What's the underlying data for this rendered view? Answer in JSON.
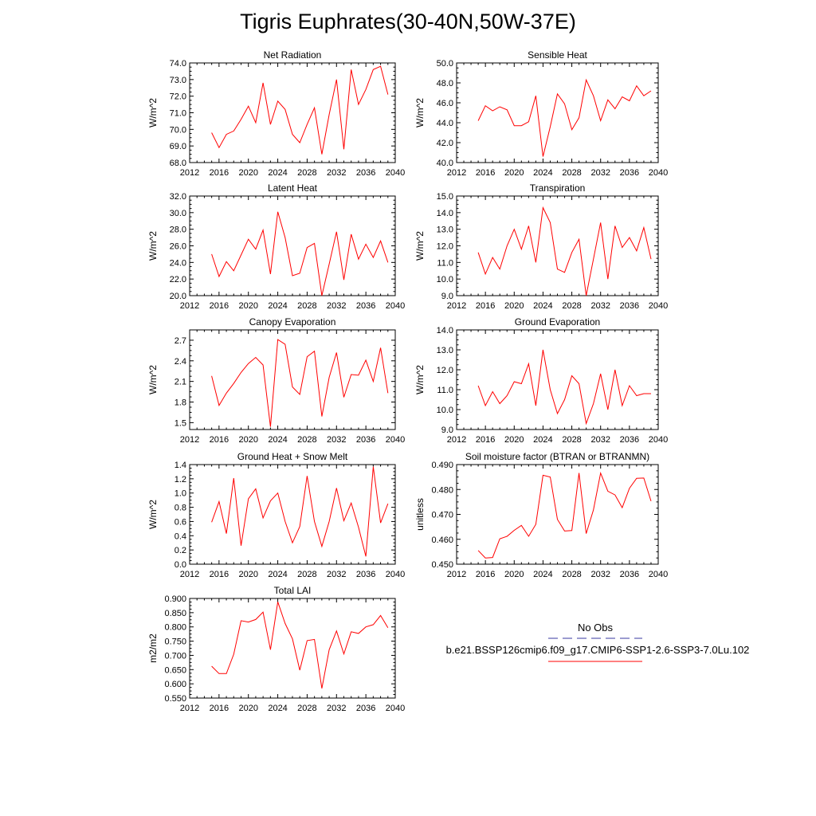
{
  "title": "Tigris Euphrates(30-40N,50W-37E)",
  "legend": {
    "items": [
      {
        "label": "No Obs",
        "color": "#3a3aa0",
        "style": "dashed"
      },
      {
        "label": "b.e21.BSSP126cmip6.f09_g17.CMIP6-SSP1-2.6-SSP3-7.0Lu.102",
        "color": "#ff0000",
        "style": "solid"
      }
    ]
  },
  "chart_data": [
    {
      "type": "line",
      "title": "Net Radiation",
      "ylabel": "W/m^2",
      "xlim": [
        2012,
        2040
      ],
      "xticks": [
        2012,
        2016,
        2020,
        2024,
        2028,
        2032,
        2036,
        2040
      ],
      "ylim": [
        68.0,
        74.0
      ],
      "yticks": [
        "68.0",
        "69.0",
        "70.0",
        "71.0",
        "72.0",
        "73.0",
        "74.0"
      ],
      "x": [
        2015,
        2016,
        2017,
        2018,
        2019,
        2020,
        2021,
        2022,
        2023,
        2024,
        2025,
        2026,
        2027,
        2028,
        2029,
        2030,
        2031,
        2032,
        2033,
        2034,
        2035,
        2036,
        2037,
        2038,
        2039
      ],
      "series": [
        {
          "color": "#ff0000",
          "values": [
            69.8,
            68.9,
            69.7,
            69.9,
            70.6,
            71.4,
            70.4,
            72.8,
            70.3,
            71.7,
            71.2,
            69.7,
            69.2,
            70.3,
            71.3,
            68.5,
            70.9,
            73.0,
            68.8,
            73.6,
            71.5,
            72.4,
            73.6,
            73.8,
            72.1
          ]
        }
      ]
    },
    {
      "type": "line",
      "title": "Sensible Heat",
      "ylabel": "W/m^2",
      "xlim": [
        2012,
        2040
      ],
      "xticks": [
        2012,
        2016,
        2020,
        2024,
        2028,
        2032,
        2036,
        2040
      ],
      "ylim": [
        40.0,
        50.0
      ],
      "yticks": [
        "40.0",
        "42.0",
        "44.0",
        "46.0",
        "48.0",
        "50.0"
      ],
      "x": [
        2015,
        2016,
        2017,
        2018,
        2019,
        2020,
        2021,
        2022,
        2023,
        2024,
        2025,
        2026,
        2027,
        2028,
        2029,
        2030,
        2031,
        2032,
        2033,
        2034,
        2035,
        2036,
        2037,
        2038,
        2039
      ],
      "series": [
        {
          "color": "#ff0000",
          "values": [
            44.2,
            45.7,
            45.2,
            45.6,
            45.3,
            43.7,
            43.7,
            44.1,
            46.7,
            40.6,
            43.6,
            46.9,
            45.9,
            43.3,
            44.5,
            48.3,
            46.7,
            44.2,
            46.3,
            45.4,
            46.6,
            46.2,
            47.7,
            46.7,
            47.2
          ]
        }
      ]
    },
    {
      "type": "line",
      "title": "Latent Heat",
      "ylabel": "W/m^2",
      "xlim": [
        2012,
        2040
      ],
      "xticks": [
        2012,
        2016,
        2020,
        2024,
        2028,
        2032,
        2036,
        2040
      ],
      "ylim": [
        20.0,
        32.0
      ],
      "yticks": [
        "20.0",
        "22.0",
        "24.0",
        "26.0",
        "28.0",
        "30.0",
        "32.0"
      ],
      "x": [
        2015,
        2016,
        2017,
        2018,
        2019,
        2020,
        2021,
        2022,
        2023,
        2024,
        2025,
        2026,
        2027,
        2028,
        2029,
        2030,
        2031,
        2032,
        2033,
        2034,
        2035,
        2036,
        2037,
        2038,
        2039
      ],
      "series": [
        {
          "color": "#ff0000",
          "values": [
            25.0,
            22.3,
            24.1,
            23.0,
            24.9,
            26.8,
            25.6,
            27.9,
            22.6,
            30.1,
            27.0,
            22.4,
            22.7,
            25.8,
            26.3,
            20.0,
            23.8,
            27.7,
            21.9,
            27.4,
            24.4,
            26.2,
            24.6,
            26.6,
            24.0
          ]
        }
      ]
    },
    {
      "type": "line",
      "title": "Transpiration",
      "ylabel": "W/m^2",
      "xlim": [
        2012,
        2040
      ],
      "xticks": [
        2012,
        2016,
        2020,
        2024,
        2028,
        2032,
        2036,
        2040
      ],
      "ylim": [
        9.0,
        15.0
      ],
      "yticks": [
        "9.0",
        "10.0",
        "11.0",
        "12.0",
        "13.0",
        "14.0",
        "15.0"
      ],
      "x": [
        2015,
        2016,
        2017,
        2018,
        2019,
        2020,
        2021,
        2022,
        2023,
        2024,
        2025,
        2026,
        2027,
        2028,
        2029,
        2030,
        2031,
        2032,
        2033,
        2034,
        2035,
        2036,
        2037,
        2038,
        2039
      ],
      "series": [
        {
          "color": "#ff0000",
          "values": [
            11.6,
            10.3,
            11.3,
            10.6,
            12.0,
            13.0,
            11.8,
            13.2,
            11.0,
            14.3,
            13.4,
            10.6,
            10.4,
            11.6,
            12.4,
            9.0,
            11.2,
            13.4,
            10.0,
            13.2,
            11.9,
            12.5,
            11.7,
            13.1,
            11.2
          ]
        }
      ]
    },
    {
      "type": "line",
      "title": "Canopy Evaporation",
      "ylabel": "W/m^2",
      "xlim": [
        2012,
        2040
      ],
      "xticks": [
        2012,
        2016,
        2020,
        2024,
        2028,
        2032,
        2036,
        2040
      ],
      "ylim": [
        1.4,
        2.85
      ],
      "yticks": [
        "1.5",
        "1.8",
        "2.1",
        "2.4",
        "2.7"
      ],
      "x": [
        2015,
        2016,
        2017,
        2018,
        2019,
        2020,
        2021,
        2022,
        2023,
        2024,
        2025,
        2026,
        2027,
        2028,
        2029,
        2030,
        2031,
        2032,
        2033,
        2034,
        2035,
        2036,
        2037,
        2038,
        2039
      ],
      "series": [
        {
          "color": "#ff0000",
          "values": [
            2.18,
            1.75,
            1.93,
            2.07,
            2.23,
            2.36,
            2.45,
            2.34,
            1.44,
            2.71,
            2.64,
            2.02,
            1.91,
            2.46,
            2.54,
            1.59,
            2.16,
            2.52,
            1.87,
            2.2,
            2.19,
            2.41,
            2.1,
            2.59,
            1.93
          ]
        }
      ]
    },
    {
      "type": "line",
      "title": "Ground Evaporation",
      "ylabel": "W/m^2",
      "xlim": [
        2012,
        2040
      ],
      "xticks": [
        2012,
        2016,
        2020,
        2024,
        2028,
        2032,
        2036,
        2040
      ],
      "ylim": [
        9.0,
        14.0
      ],
      "yticks": [
        "9.0",
        "10.0",
        "11.0",
        "12.0",
        "13.0",
        "14.0"
      ],
      "x": [
        2015,
        2016,
        2017,
        2018,
        2019,
        2020,
        2021,
        2022,
        2023,
        2024,
        2025,
        2026,
        2027,
        2028,
        2029,
        2030,
        2031,
        2032,
        2033,
        2034,
        2035,
        2036,
        2037,
        2038,
        2039
      ],
      "series": [
        {
          "color": "#ff0000",
          "values": [
            11.2,
            10.2,
            10.9,
            10.3,
            10.7,
            11.4,
            11.3,
            12.3,
            10.2,
            13.0,
            11.0,
            9.8,
            10.5,
            11.7,
            11.3,
            9.3,
            10.3,
            11.8,
            10.0,
            12.0,
            10.2,
            11.2,
            10.7,
            10.8,
            10.8
          ]
        }
      ]
    },
    {
      "type": "line",
      "title": "Ground Heat + Snow Melt",
      "ylabel": "W/m^2",
      "xlim": [
        2012,
        2040
      ],
      "xticks": [
        2012,
        2016,
        2020,
        2024,
        2028,
        2032,
        2036,
        2040
      ],
      "ylim": [
        0.0,
        1.4
      ],
      "yticks": [
        "0.0",
        "0.2",
        "0.4",
        "0.6",
        "0.8",
        "1.0",
        "1.2",
        "1.4"
      ],
      "x": [
        2015,
        2016,
        2017,
        2018,
        2019,
        2020,
        2021,
        2022,
        2023,
        2024,
        2025,
        2026,
        2027,
        2028,
        2029,
        2030,
        2031,
        2032,
        2033,
        2034,
        2035,
        2036,
        2037,
        2038,
        2039
      ],
      "series": [
        {
          "color": "#ff0000",
          "values": [
            0.59,
            0.88,
            0.43,
            1.21,
            0.26,
            0.92,
            1.06,
            0.65,
            0.89,
            1.0,
            0.6,
            0.3,
            0.53,
            1.24,
            0.6,
            0.25,
            0.6,
            1.07,
            0.61,
            0.86,
            0.52,
            0.11,
            1.37,
            0.58,
            0.85
          ]
        }
      ]
    },
    {
      "type": "line",
      "title": "Soil moisture factor (BTRAN or BTRANMN)",
      "ylabel": "unitless",
      "xlim": [
        2012,
        2040
      ],
      "xticks": [
        2012,
        2016,
        2020,
        2024,
        2028,
        2032,
        2036,
        2040
      ],
      "ylim": [
        0.45,
        0.49
      ],
      "yticks": [
        "0.450",
        "0.460",
        "0.470",
        "0.480",
        "0.490"
      ],
      "x": [
        2015,
        2016,
        2017,
        2018,
        2019,
        2020,
        2021,
        2022,
        2023,
        2024,
        2025,
        2026,
        2027,
        2028,
        2029,
        2030,
        2031,
        2032,
        2033,
        2034,
        2035,
        2036,
        2037,
        2038,
        2039
      ],
      "series": [
        {
          "color": "#ff0000",
          "values": [
            0.4555,
            0.4525,
            0.4527,
            0.4602,
            0.4612,
            0.4636,
            0.4656,
            0.4612,
            0.466,
            0.4857,
            0.485,
            0.468,
            0.4633,
            0.4635,
            0.4866,
            0.4623,
            0.4718,
            0.4866,
            0.4793,
            0.4778,
            0.4727,
            0.4805,
            0.4845,
            0.4846,
            0.4753
          ]
        }
      ]
    },
    {
      "type": "line",
      "title": "Total LAI",
      "ylabel": "m2/m2",
      "xlim": [
        2012,
        2040
      ],
      "xticks": [
        2012,
        2016,
        2020,
        2024,
        2028,
        2032,
        2036,
        2040
      ],
      "ylim": [
        0.55,
        0.9
      ],
      "yticks": [
        "0.550",
        "0.600",
        "0.650",
        "0.700",
        "0.750",
        "0.800",
        "0.850",
        "0.900"
      ],
      "x": [
        2015,
        2016,
        2017,
        2018,
        2019,
        2020,
        2021,
        2022,
        2023,
        2024,
        2025,
        2026,
        2027,
        2028,
        2029,
        2030,
        2031,
        2032,
        2033,
        2034,
        2035,
        2036,
        2037,
        2038,
        2039
      ],
      "series": [
        {
          "color": "#ff0000",
          "values": [
            0.662,
            0.636,
            0.636,
            0.704,
            0.822,
            0.817,
            0.826,
            0.852,
            0.72,
            0.888,
            0.812,
            0.758,
            0.648,
            0.752,
            0.756,
            0.584,
            0.72,
            0.786,
            0.705,
            0.783,
            0.777,
            0.8,
            0.808,
            0.84,
            0.797
          ]
        }
      ]
    }
  ]
}
